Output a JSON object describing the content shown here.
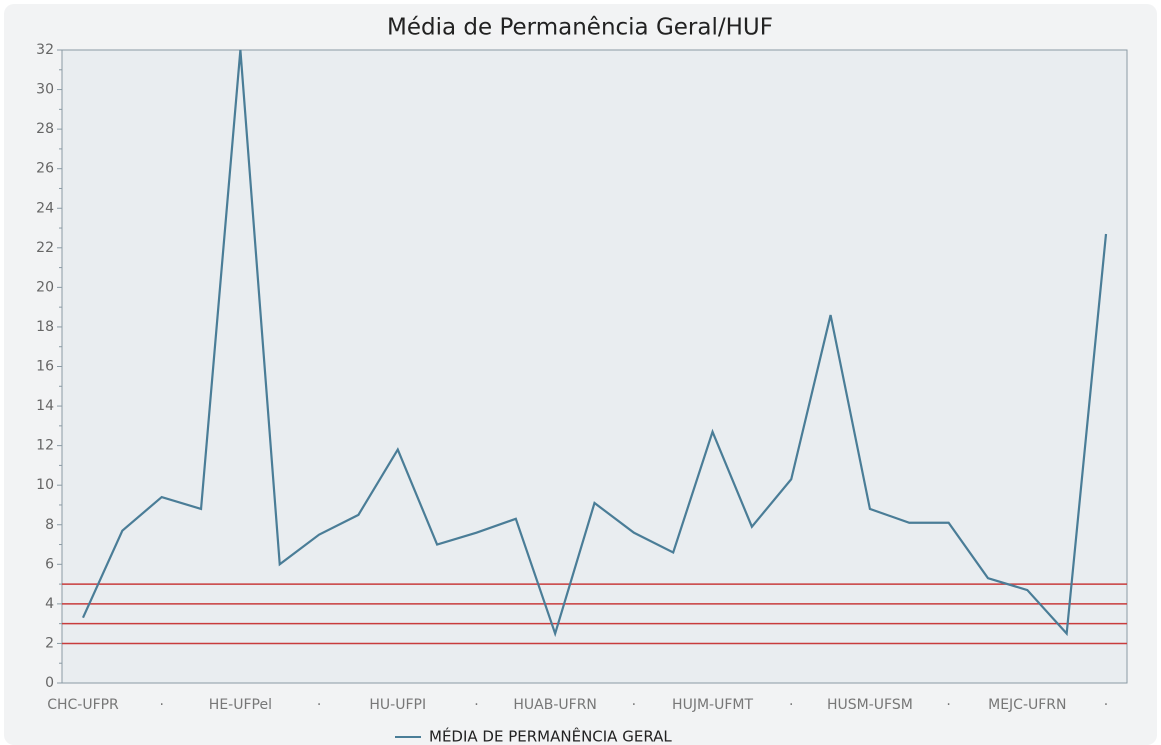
{
  "chart_data": {
    "type": "line",
    "title": "Média de Permanência Geral/HUF",
    "categories": [
      "CHC-UFPR",
      null,
      "·",
      null,
      "HE-UFPel",
      null,
      "·",
      null,
      "HU-UFPI",
      null,
      "·",
      null,
      "HUAB-UFRN",
      null,
      "·",
      null,
      "HUJM-UFMT",
      null,
      "·",
      null,
      "HUSM-UFSM",
      null,
      "·",
      null,
      "MEJC-UFRN",
      null,
      "·"
    ],
    "series": [
      {
        "name": "MÉDIA DE PERMANÊNCIA GERAL",
        "color": "#4a7d97",
        "values": [
          3.3,
          7.7,
          9.4,
          8.8,
          32,
          6.0,
          7.5,
          8.5,
          11.8,
          7.0,
          7.6,
          8.3,
          2.5,
          9.1,
          7.6,
          6.6,
          12.7,
          7.9,
          10.3,
          18.6,
          8.8,
          8.1,
          8.1,
          5.3,
          4.7,
          2.5,
          22.7
        ]
      }
    ],
    "ylim": [
      0,
      32
    ],
    "yticks": [
      0,
      2,
      4,
      6,
      8,
      10,
      12,
      14,
      16,
      18,
      20,
      22,
      24,
      26,
      28,
      30,
      32
    ],
    "yticks_minor": [
      1,
      3,
      5,
      7,
      9,
      11,
      13,
      15,
      17,
      19,
      21,
      23,
      25,
      27,
      29,
      31
    ],
    "reference_lines": [
      2,
      3,
      4,
      5
    ],
    "reference_color": "#c83c3c",
    "legend": "bottom"
  }
}
